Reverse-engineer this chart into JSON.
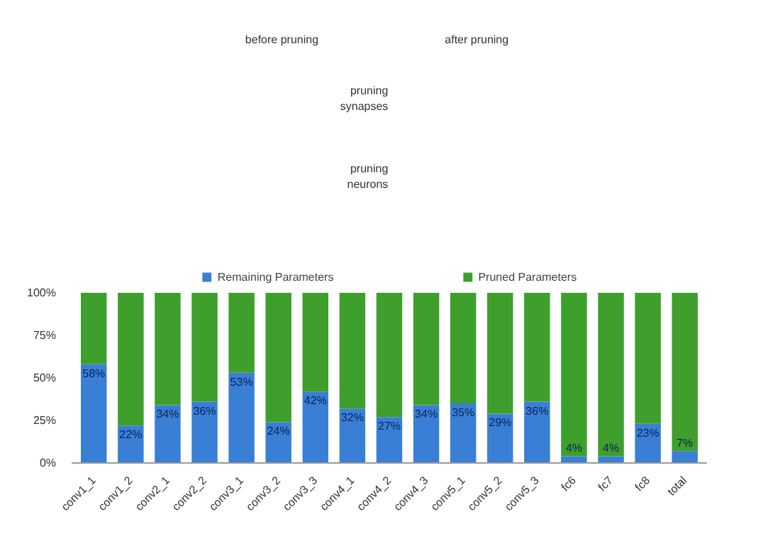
{
  "chart_data": {
    "type": "bar",
    "stacked": true,
    "annotations": [
      "before pruning",
      "after pruning",
      "pruning synapses",
      "pruning neurons"
    ],
    "categories": [
      "conv1_1",
      "conv1_2",
      "conv2_1",
      "conv2_2",
      "conv3_1",
      "conv3_2",
      "conv3_3",
      "conv4_1",
      "conv4_2",
      "conv4_3",
      "conv5_1",
      "conv5_2",
      "conv5_3",
      "fc6",
      "fc7",
      "fc8",
      "total"
    ],
    "series": [
      {
        "name": "Remaining Parameters",
        "color": "#3a7fd6",
        "values": [
          58,
          22,
          34,
          36,
          53,
          24,
          42,
          32,
          27,
          34,
          35,
          29,
          36,
          4,
          4,
          23,
          7
        ],
        "value_labels": [
          "58%",
          "22%",
          "34%",
          "36%",
          "53%",
          "24%",
          "42%",
          "32%",
          "27%",
          "34%",
          "35%",
          "29%",
          "36%",
          "4%",
          "4%",
          "23%",
          "7%"
        ]
      },
      {
        "name": "Pruned Parameters",
        "color": "#3e9f2c",
        "values": [
          42,
          78,
          66,
          64,
          47,
          76,
          58,
          68,
          73,
          66,
          65,
          71,
          64,
          96,
          96,
          77,
          93
        ]
      }
    ],
    "ylim": [
      0,
      100
    ],
    "yticks": [
      {
        "value": 0,
        "label": "0%"
      },
      {
        "value": 25,
        "label": "25%"
      },
      {
        "value": 50,
        "label": "50%"
      },
      {
        "value": 75,
        "label": "75%"
      },
      {
        "value": 100,
        "label": "100%"
      }
    ],
    "grid": false,
    "legend": "top"
  }
}
